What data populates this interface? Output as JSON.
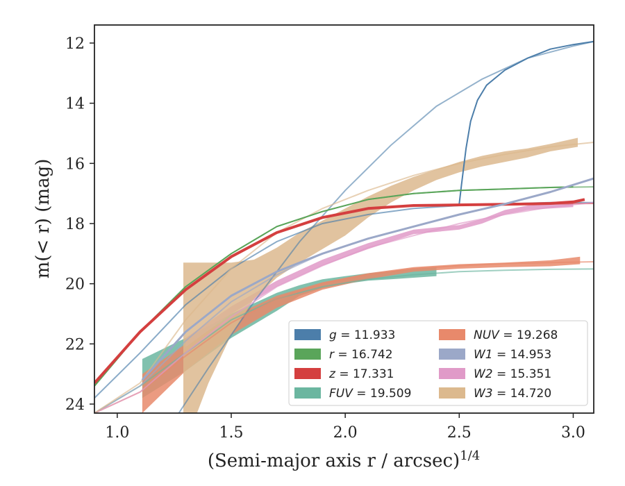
{
  "chart_data": {
    "type": "line",
    "xlabel": "(Semi-major axis r / arcsec)",
    "xlabel_sup": "1/4",
    "ylabel": "m(< r) (mag)",
    "xlim": [
      0.9,
      3.09
    ],
    "ylim": [
      24.3,
      11.4
    ],
    "y_inverted": true,
    "x_ticks": [
      1.0,
      1.5,
      2.0,
      2.5,
      3.0
    ],
    "x_tick_labels": [
      "1.0",
      "1.5",
      "2.0",
      "2.5",
      "3.0"
    ],
    "y_ticks": [
      12,
      14,
      16,
      18,
      20,
      22,
      24
    ],
    "y_tick_labels": [
      "12",
      "14",
      "16",
      "18",
      "20",
      "22",
      "24"
    ],
    "grid": false,
    "legend_position": "lower-right",
    "series": [
      {
        "name": "g",
        "value": "11.933",
        "color": "#4c7eaa",
        "model": {
          "x": [
            0.9,
            1.1,
            1.3,
            1.5,
            1.7,
            1.9,
            2.1,
            2.3,
            2.5,
            2.7,
            2.9,
            3.09
          ],
          "y": [
            23.8,
            22.3,
            20.7,
            19.5,
            18.6,
            18.0,
            17.7,
            17.5,
            17.4,
            17.35,
            17.3,
            17.3
          ]
        },
        "data": {
          "x": [
            2.5,
            2.51,
            2.53,
            2.55,
            2.58,
            2.62,
            2.7,
            2.8,
            2.9,
            3.0,
            3.09
          ],
          "y": [
            17.35,
            16.7,
            15.5,
            14.6,
            13.9,
            13.4,
            12.9,
            12.5,
            12.2,
            12.05,
            11.95
          ]
        },
        "data_width": 2,
        "thin": {
          "x": [
            1.27,
            1.4,
            1.6,
            1.8,
            2.0,
            2.2,
            2.4,
            2.6,
            2.8,
            3.0,
            3.09
          ],
          "y": [
            24.3,
            22.8,
            20.6,
            18.6,
            16.9,
            15.4,
            14.1,
            13.2,
            12.5,
            12.1,
            11.95
          ]
        }
      },
      {
        "name": "r",
        "value": "16.742",
        "color": "#5aa55a",
        "model": {
          "x": [
            0.9,
            1.1,
            1.3,
            1.5,
            1.7,
            1.9,
            2.1,
            2.3,
            2.5,
            2.7,
            2.9,
            3.09
          ],
          "y": [
            23.4,
            21.6,
            20.1,
            19.0,
            18.1,
            17.6,
            17.2,
            17.0,
            16.9,
            16.85,
            16.8,
            16.78
          ]
        },
        "data": {
          "x": [
            0.9,
            1.1,
            1.3,
            1.5,
            1.7,
            1.9,
            2.1,
            2.3,
            2.5,
            2.7,
            2.9,
            3.0
          ],
          "y": [
            23.4,
            21.6,
            20.1,
            19.0,
            18.1,
            17.6,
            17.2,
            17.0,
            16.9,
            16.85,
            16.8,
            16.78
          ]
        },
        "data_width": 2
      },
      {
        "name": "z",
        "value": "17.331",
        "color": "#d43f3f",
        "model": {
          "x": [
            0.9,
            1.1,
            1.3,
            1.5,
            1.7,
            1.9,
            2.1,
            2.3,
            2.5,
            2.7,
            2.9,
            3.09
          ],
          "y": [
            23.3,
            21.6,
            20.2,
            19.1,
            18.3,
            17.8,
            17.5,
            17.4,
            17.38,
            17.36,
            17.35,
            17.33
          ]
        },
        "data": {
          "x": [
            0.9,
            1.1,
            1.3,
            1.5,
            1.7,
            1.9,
            2.1,
            2.3,
            2.5,
            2.7,
            2.8,
            2.9,
            3.0,
            3.05
          ],
          "y": [
            23.3,
            21.6,
            20.2,
            19.1,
            18.3,
            17.8,
            17.5,
            17.4,
            17.38,
            17.36,
            17.35,
            17.33,
            17.28,
            17.2
          ]
        },
        "data_width": 4
      },
      {
        "name": "FUV",
        "value": "19.509",
        "color": "#6bb6a0",
        "model": {
          "x": [
            0.9,
            1.1,
            1.3,
            1.5,
            1.7,
            1.9,
            2.1,
            2.3,
            2.5,
            2.7,
            2.9,
            3.09
          ],
          "y": [
            24.3,
            23.4,
            22.3,
            21.2,
            20.5,
            20.1,
            19.85,
            19.7,
            19.6,
            19.55,
            19.52,
            19.51
          ]
        },
        "band_upper": {
          "x": [
            1.11,
            1.3,
            1.5,
            1.7,
            1.8,
            1.9,
            2.0,
            2.1,
            2.2,
            2.3,
            2.4
          ],
          "y": [
            22.5,
            21.8,
            21.0,
            20.3,
            20.05,
            19.85,
            19.75,
            19.65,
            19.58,
            19.5,
            19.45
          ]
        },
        "band_lower": {
          "x": [
            1.11,
            1.3,
            1.5,
            1.7,
            1.8,
            1.9,
            2.0,
            2.1,
            2.2,
            2.3,
            2.4
          ],
          "y": [
            23.8,
            22.9,
            21.8,
            20.9,
            20.4,
            20.15,
            20.0,
            19.9,
            19.85,
            19.8,
            19.75
          ]
        }
      },
      {
        "name": "NUV",
        "value": "19.268",
        "color": "#e8896b",
        "model": {
          "x": [
            0.9,
            1.1,
            1.3,
            1.5,
            1.7,
            1.9,
            2.1,
            2.3,
            2.5,
            2.7,
            2.9,
            3.09
          ],
          "y": [
            24.3,
            23.6,
            22.4,
            21.3,
            20.5,
            20.0,
            19.7,
            19.5,
            19.4,
            19.33,
            19.3,
            19.27
          ]
        },
        "band_upper": {
          "x": [
            1.11,
            1.3,
            1.5,
            1.7,
            1.9,
            2.1,
            2.3,
            2.5,
            2.7,
            2.9,
            3.03
          ],
          "y": [
            23.0,
            22.0,
            21.1,
            20.4,
            19.95,
            19.65,
            19.45,
            19.35,
            19.3,
            19.22,
            19.1
          ]
        },
        "band_lower": {
          "x": [
            1.11,
            1.3,
            1.5,
            1.7,
            1.9,
            2.1,
            2.3,
            2.5,
            2.7,
            2.9,
            3.03
          ],
          "y": [
            24.3,
            22.9,
            21.7,
            20.8,
            20.2,
            19.85,
            19.6,
            19.5,
            19.45,
            19.42,
            19.35
          ]
        }
      },
      {
        "name": "W1",
        "value": "14.953",
        "color": "#9ba8c8",
        "model": {
          "x": [
            0.9,
            1.1,
            1.3,
            1.5,
            1.7,
            1.9,
            2.1,
            2.3,
            2.5,
            2.7,
            2.9,
            3.09
          ],
          "y": [
            24.3,
            23.4,
            21.9,
            20.6,
            19.7,
            19.0,
            18.5,
            18.1,
            17.7,
            17.35,
            16.95,
            16.5
          ]
        },
        "data": {
          "x": [
            1.11,
            1.3,
            1.5,
            1.7,
            1.9,
            2.1,
            2.3,
            2.5,
            2.7,
            2.9,
            3.09
          ],
          "y": [
            23.2,
            21.6,
            20.4,
            19.6,
            19.0,
            18.5,
            18.1,
            17.7,
            17.35,
            16.95,
            16.5
          ]
        },
        "data_width": 3
      },
      {
        "name": "W2",
        "value": "15.351",
        "color": "#e09ac8",
        "model": {
          "x": [
            0.9,
            1.1,
            1.3,
            1.5,
            1.7,
            1.9,
            2.1,
            2.3,
            2.5,
            2.7,
            2.9,
            3.09
          ],
          "y": [
            24.3,
            23.6,
            22.3,
            21.1,
            20.1,
            19.4,
            18.8,
            18.4,
            18.0,
            17.7,
            17.45,
            17.3
          ]
        },
        "band_upper": {
          "x": [
            1.3,
            1.5,
            1.7,
            1.9,
            2.1,
            2.3,
            2.5,
            2.6,
            2.7,
            2.8,
            2.9,
            3.0
          ],
          "y": [
            21.8,
            20.75,
            19.9,
            19.2,
            18.65,
            18.2,
            18.05,
            17.85,
            17.55,
            17.4,
            17.35,
            17.3
          ]
        },
        "band_lower": {
          "x": [
            1.3,
            1.5,
            1.7,
            1.9,
            2.1,
            2.3,
            2.5,
            2.6,
            2.7,
            2.8,
            2.9,
            3.0
          ],
          "y": [
            22.1,
            21.0,
            20.1,
            19.4,
            18.85,
            18.35,
            18.2,
            18.0,
            17.7,
            17.55,
            17.5,
            17.45
          ]
        }
      },
      {
        "name": "W3",
        "value": "14.720",
        "color": "#dcb98e",
        "model": {
          "x": [
            0.9,
            1.1,
            1.3,
            1.5,
            1.7,
            1.9,
            2.1,
            2.3,
            2.5,
            2.7,
            2.9,
            3.09
          ],
          "y": [
            24.3,
            23.3,
            21.2,
            19.5,
            18.3,
            17.5,
            16.9,
            16.4,
            16.0,
            15.7,
            15.45,
            15.3
          ]
        },
        "band_upper": {
          "x": [
            1.29,
            1.4,
            1.5,
            1.6,
            1.7,
            1.8,
            1.9,
            2.0,
            2.1,
            2.2,
            2.3,
            2.4,
            2.5,
            2.6,
            2.7,
            2.8,
            2.9,
            3.02
          ],
          "y": [
            19.3,
            19.3,
            19.3,
            19.2,
            18.8,
            18.3,
            17.9,
            17.5,
            17.1,
            16.75,
            16.45,
            16.2,
            15.95,
            15.75,
            15.6,
            15.5,
            15.35,
            15.15
          ]
        },
        "band_lower": {
          "x": [
            1.29,
            1.35,
            1.4,
            1.5,
            1.6,
            1.7,
            1.8,
            1.9,
            2.0,
            2.1,
            2.2,
            2.3,
            2.4,
            2.5,
            2.6,
            2.7,
            2.8,
            2.9,
            3.02
          ],
          "y": [
            24.3,
            24.3,
            23.3,
            21.7,
            20.5,
            19.8,
            19.3,
            18.85,
            18.4,
            17.8,
            17.3,
            16.9,
            16.55,
            16.3,
            16.1,
            15.95,
            15.8,
            15.6,
            15.45
          ]
        }
      }
    ]
  }
}
